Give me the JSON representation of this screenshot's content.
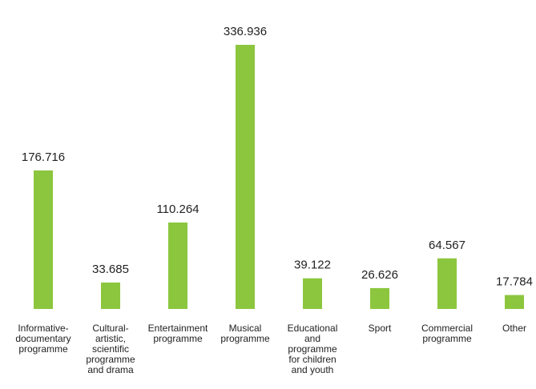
{
  "chart_data": {
    "type": "bar",
    "categories": [
      "Informative-\ndocumentary\nprogramme",
      "Cultural-\nartistic,\nscientific\nprogramme\nand drama",
      "Entertainment\nprogramme",
      "Musical\nprogramme",
      "Educational\nand\nprogramme\nfor children\nand youth",
      "Sport",
      "Commercial\nprogramme",
      "Other"
    ],
    "values": [
      176.716,
      33.685,
      110.264,
      336.936,
      39.122,
      26.626,
      64.567,
      17.784
    ],
    "color": "#8cc63e"
  }
}
